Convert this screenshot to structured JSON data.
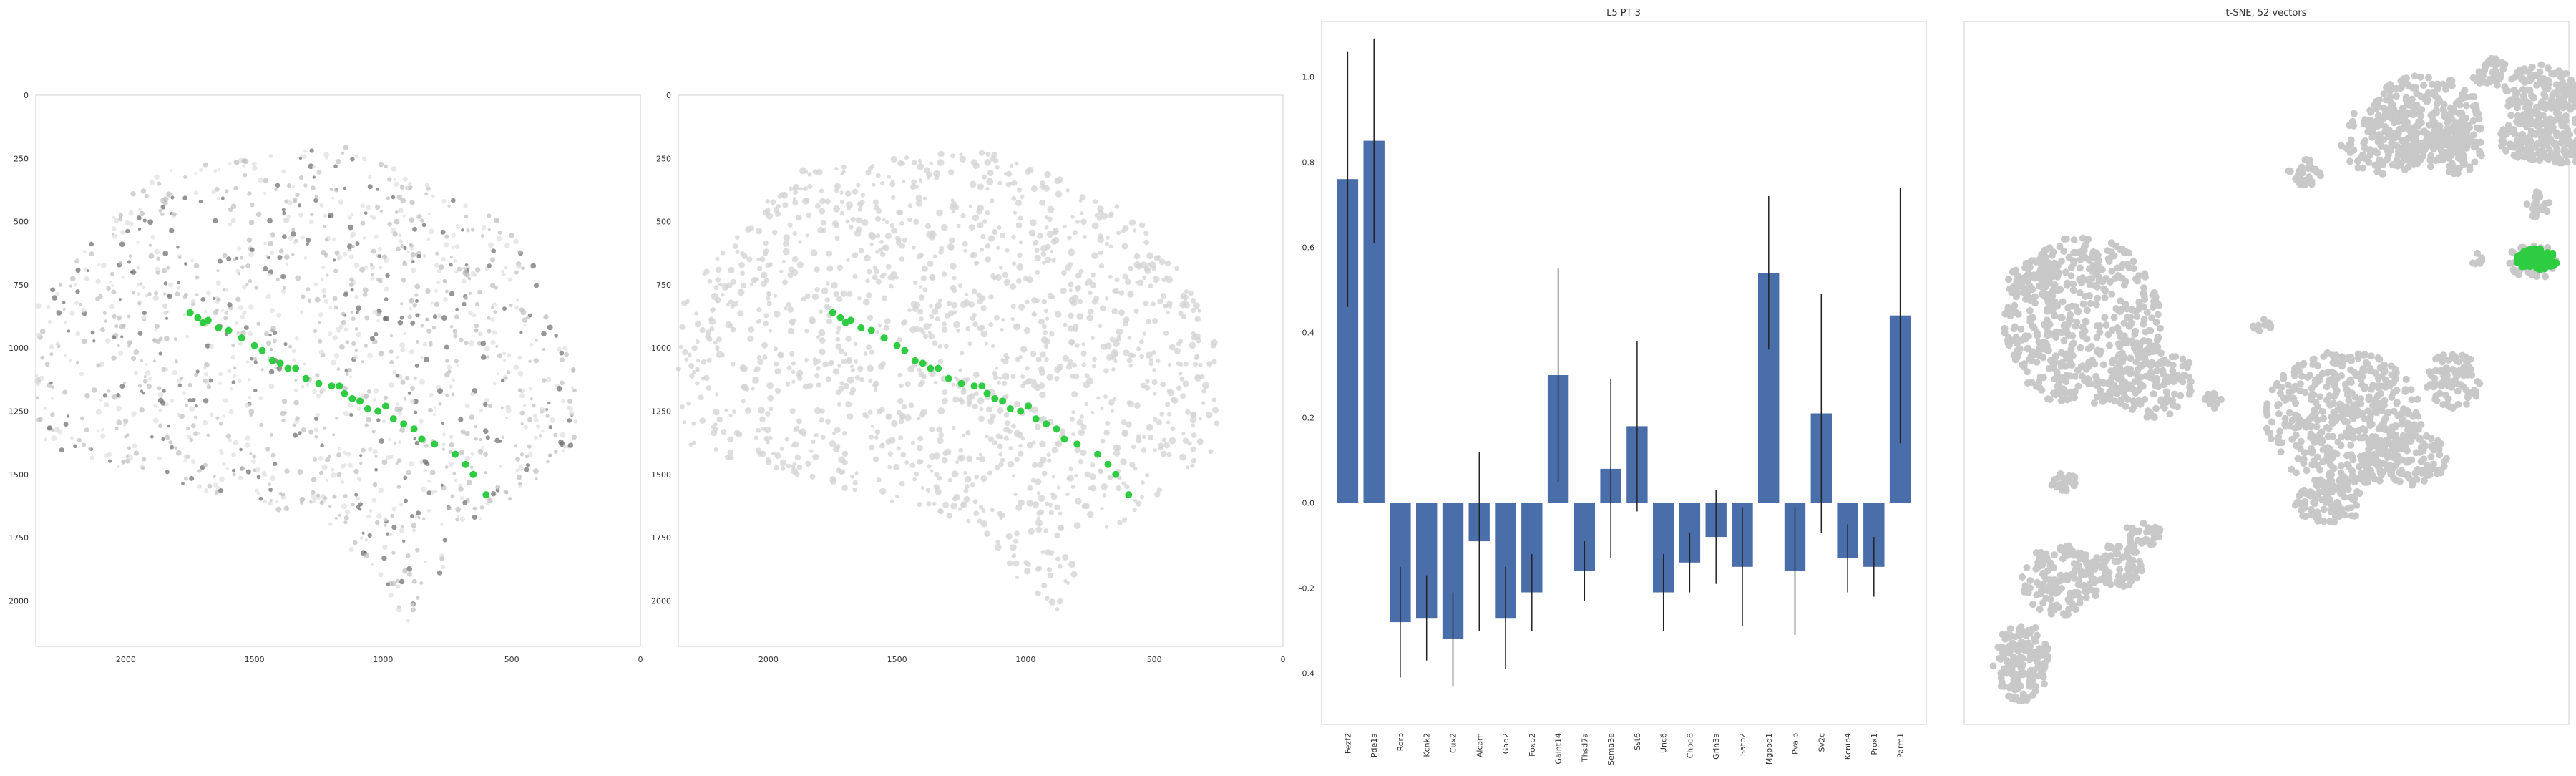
{
  "colors": {
    "highlight": "#2ecc40",
    "gray_dot": "#c8c8c8",
    "dark_dot": "#555555",
    "bar": "#4a6ea9",
    "err": "#222222",
    "frame": "#cfcfcf"
  },
  "chart_data": [
    {
      "type": "scatter",
      "title": "",
      "xlim": [
        2350,
        0
      ],
      "ylim": [
        2180,
        0
      ],
      "xticks": [
        2000,
        1500,
        1000,
        500,
        0
      ],
      "yticks": [
        0,
        250,
        500,
        750,
        1000,
        1250,
        1500,
        1750,
        2000
      ],
      "grid": false,
      "series": [
        {
          "role": "highlight",
          "x": [
            1750,
            1720,
            1700,
            1680,
            1640,
            1600,
            1550,
            1500,
            1470,
            1430,
            1400,
            1370,
            1340,
            1300,
            1250,
            1200,
            1170,
            1150,
            1120,
            1090,
            1060,
            1020,
            990,
            960,
            920,
            880,
            850,
            800,
            720,
            680,
            650,
            600
          ],
          "y": [
            860,
            880,
            900,
            890,
            920,
            930,
            960,
            990,
            1010,
            1050,
            1060,
            1080,
            1080,
            1120,
            1140,
            1150,
            1150,
            1180,
            1200,
            1210,
            1240,
            1250,
            1230,
            1280,
            1300,
            1320,
            1360,
            1380,
            1420,
            1460,
            1500,
            1580
          ]
        }
      ]
    },
    {
      "type": "scatter",
      "title": "",
      "xlim": [
        2350,
        0
      ],
      "ylim": [
        2180,
        0
      ],
      "xticks": [
        2000,
        1500,
        1000,
        500,
        0
      ],
      "yticks": [
        0,
        250,
        500,
        750,
        1000,
        1250,
        1500,
        1750,
        2000
      ],
      "grid": false,
      "series": [
        {
          "role": "highlight",
          "x": [
            1750,
            1720,
            1700,
            1680,
            1640,
            1600,
            1550,
            1500,
            1470,
            1430,
            1400,
            1370,
            1340,
            1300,
            1250,
            1200,
            1170,
            1150,
            1120,
            1090,
            1060,
            1020,
            990,
            960,
            920,
            880,
            850,
            800,
            720,
            680,
            650,
            600
          ],
          "y": [
            860,
            880,
            900,
            890,
            920,
            930,
            960,
            990,
            1010,
            1050,
            1060,
            1080,
            1080,
            1120,
            1140,
            1150,
            1150,
            1180,
            1200,
            1210,
            1240,
            1250,
            1230,
            1280,
            1300,
            1320,
            1360,
            1380,
            1420,
            1460,
            1500,
            1580
          ]
        }
      ]
    },
    {
      "type": "bar",
      "title": "L5 PT 3",
      "ylim": [
        -0.52,
        1.13
      ],
      "yticks": [
        -0.4,
        -0.2,
        0.0,
        0.2,
        0.4,
        0.6,
        0.8,
        1.0
      ],
      "categories": [
        "Fezf2",
        "Pde1a",
        "Rorb",
        "Kcnk2",
        "Cux2",
        "Alcam",
        "Gad2",
        "Foxp2",
        "Galnt14",
        "Thsd7a",
        "Sema3e",
        "Sst6",
        "Unc6",
        "Chod8",
        "Grin3a",
        "Satb2",
        "Mgpod1",
        "Pvalb",
        "Sv2c",
        "Kcnip4",
        "Prox1",
        "Parm1"
      ],
      "values": [
        0.76,
        0.85,
        -0.28,
        -0.27,
        -0.32,
        -0.09,
        -0.27,
        -0.21,
        0.3,
        -0.16,
        0.08,
        0.18,
        -0.21,
        -0.14,
        -0.08,
        -0.15,
        0.54,
        -0.16,
        0.21,
        -0.13,
        -0.15,
        0.44
      ],
      "errors": [
        0.3,
        0.24,
        0.13,
        0.1,
        0.11,
        0.21,
        0.12,
        0.09,
        0.25,
        0.07,
        0.21,
        0.2,
        0.09,
        0.07,
        0.11,
        0.14,
        0.18,
        0.15,
        0.28,
        0.08,
        0.07,
        0.3
      ]
    },
    {
      "type": "scatter",
      "title": "t-SNE, 52 vectors",
      "axes_visible": false,
      "grid": false,
      "series": [
        {
          "role": "highlight",
          "center": [
            3545,
            362
          ],
          "spread": [
            30,
            15
          ],
          "count": 90
        }
      ]
    }
  ]
}
